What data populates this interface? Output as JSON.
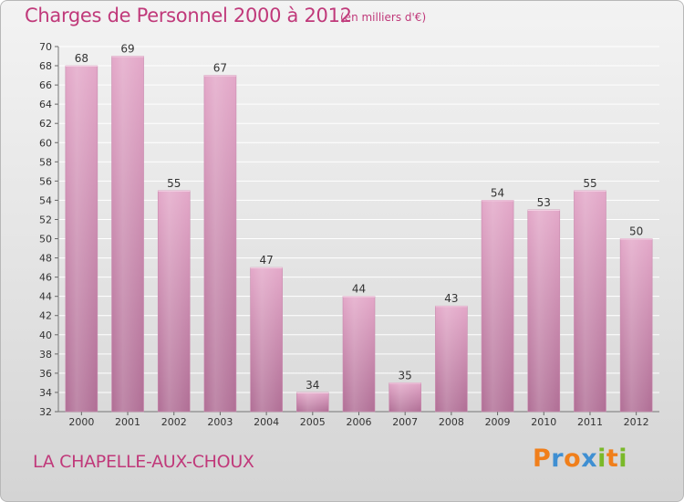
{
  "chart_data": {
    "type": "bar",
    "title": "Charges de Personnel 2000 à 2012",
    "subtitle": "(en milliers d'€)",
    "categories": [
      "2000",
      "2001",
      "2002",
      "2003",
      "2004",
      "2005",
      "2006",
      "2007",
      "2008",
      "2009",
      "2010",
      "2011",
      "2012"
    ],
    "values": [
      68,
      69,
      55,
      67,
      47,
      34,
      44,
      35,
      43,
      54,
      53,
      55,
      50
    ],
    "ylim": [
      32,
      70
    ],
    "yticks": [
      32,
      34,
      36,
      38,
      40,
      42,
      44,
      46,
      48,
      50,
      52,
      54,
      56,
      58,
      60,
      62,
      64,
      66,
      68,
      70
    ],
    "grid": true,
    "bar_color": "#d98fb7",
    "xlabel": "",
    "ylabel": ""
  },
  "footer": {
    "place": "LA CHAPELLE-AUX-CHOUX",
    "logo_letters": [
      "P",
      "r",
      "o",
      "x",
      "i",
      "t",
      "i"
    ],
    "logo_colors": [
      "#f07f1b",
      "#3f8fd2",
      "#f07f1b",
      "#3f8fd2",
      "#7ab929",
      "#f07f1b",
      "#7ab929"
    ]
  },
  "colors": {
    "accent": "#c0397a"
  }
}
